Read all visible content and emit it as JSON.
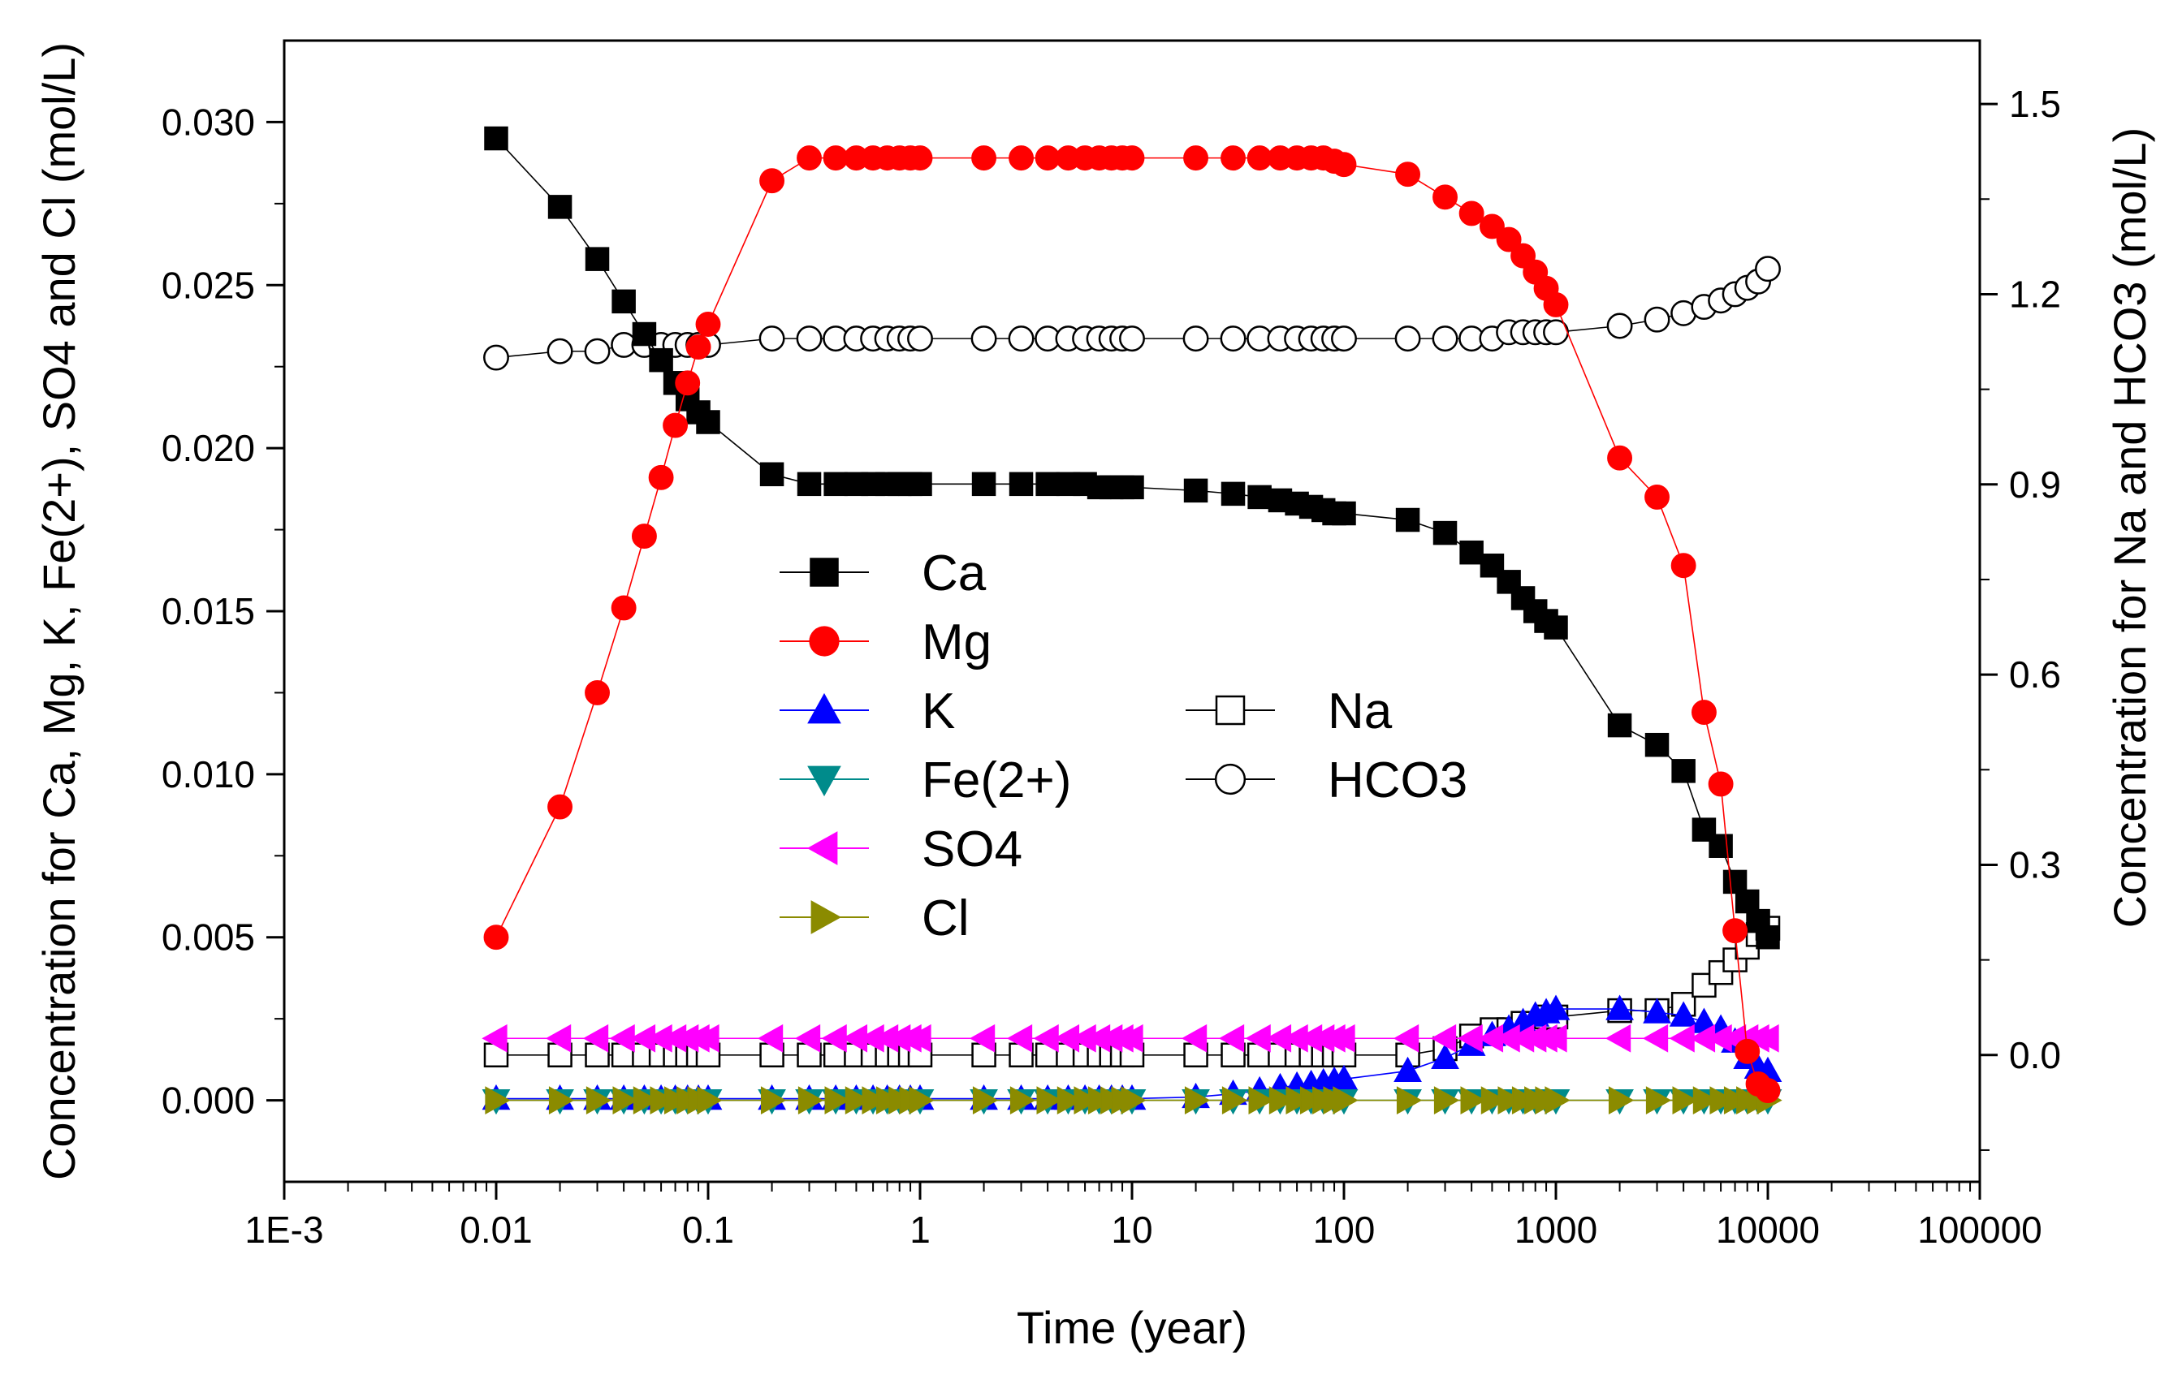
{
  "chart_data": {
    "type": "scatter",
    "title": "",
    "xlabel": "Time (year)",
    "ylabel_left": "Concentration for Ca, Mg, K, Fe(2+), SO4 and Cl (mol/L)",
    "ylabel_right": "Concentration for Na and HCO3 (mol/L)",
    "xscale": "log",
    "xlim": [
      0.001,
      100000
    ],
    "ylim_left": [
      -0.0025,
      0.0325
    ],
    "ylim_right": [
      -0.2,
      1.6
    ],
    "x_ticks": [
      0.001,
      0.01,
      0.1,
      1,
      10,
      100,
      1000,
      10000,
      100000
    ],
    "x_tick_labels": [
      "1E-3",
      "0.01",
      "0.1",
      "1",
      "10",
      "100",
      "1000",
      "10000",
      "100000"
    ],
    "y_left_ticks": [
      0,
      0.005,
      0.01,
      0.015,
      0.02,
      0.025,
      0.03
    ],
    "y_left_tick_labels": [
      "0.000",
      "0.005",
      "0.010",
      "0.015",
      "0.020",
      "0.025",
      "0.030"
    ],
    "y_right_ticks": [
      0,
      0.3,
      0.6,
      0.9,
      1.2,
      1.5
    ],
    "y_right_tick_labels": [
      "0.0",
      "0.3",
      "0.6",
      "0.9",
      "1.2",
      "1.5"
    ],
    "legend_position": "center",
    "x": [
      0.01,
      0.02,
      0.03,
      0.04,
      0.05,
      0.06,
      0.07,
      0.08,
      0.09,
      0.1,
      0.2,
      0.3,
      0.4,
      0.5,
      0.6,
      0.7,
      0.8,
      0.9,
      1,
      2,
      3,
      4,
      5,
      6,
      7,
      8,
      9,
      10,
      20,
      30,
      40,
      50,
      60,
      70,
      80,
      90,
      100,
      200,
      300,
      400,
      500,
      600,
      700,
      800,
      900,
      1000,
      2000,
      3000,
      4000,
      5000,
      6000,
      7000,
      8000,
      9000,
      10000
    ],
    "series": [
      {
        "name": "Ca",
        "axis": "left",
        "color": "#000000",
        "marker": "square-filled",
        "values": [
          0.0295,
          0.0274,
          0.0258,
          0.0245,
          0.0235,
          0.0227,
          0.022,
          0.0215,
          0.0211,
          0.0208,
          0.0192,
          0.0189,
          0.0189,
          0.0189,
          0.0189,
          0.0189,
          0.0189,
          0.0189,
          0.0189,
          0.0189,
          0.0189,
          0.0189,
          0.0189,
          0.0189,
          0.0188,
          0.0188,
          0.0188,
          0.0188,
          0.0187,
          0.0186,
          0.0185,
          0.0184,
          0.0183,
          0.0182,
          0.0181,
          0.018,
          0.018,
          0.0178,
          0.0174,
          0.0168,
          0.0164,
          0.0159,
          0.0154,
          0.015,
          0.0147,
          0.0145,
          0.0115,
          0.0109,
          0.0101,
          0.0083,
          0.0078,
          0.0067,
          0.0061,
          0.0055,
          0.005
        ]
      },
      {
        "name": "Mg",
        "axis": "left",
        "color": "#ff0000",
        "marker": "circle-filled",
        "values": [
          0.005,
          0.009,
          0.0125,
          0.0151,
          0.0173,
          0.0191,
          0.0207,
          0.022,
          0.0231,
          0.0238,
          0.0282,
          0.0289,
          0.0289,
          0.0289,
          0.0289,
          0.0289,
          0.0289,
          0.0289,
          0.0289,
          0.0289,
          0.0289,
          0.0289,
          0.0289,
          0.0289,
          0.0289,
          0.0289,
          0.0289,
          0.0289,
          0.0289,
          0.0289,
          0.0289,
          0.0289,
          0.0289,
          0.0289,
          0.0289,
          0.0288,
          0.0287,
          0.0284,
          0.0277,
          0.0272,
          0.0268,
          0.0264,
          0.0259,
          0.0254,
          0.0249,
          0.0244,
          0.0197,
          0.0185,
          0.0164,
          0.0119,
          0.0097,
          0.0052,
          0.0015,
          0.0005,
          0.0003
        ]
      },
      {
        "name": "K",
        "axis": "left",
        "color": "#0000ff",
        "marker": "triangle-up-filled",
        "values": [
          5e-05,
          5e-05,
          5e-05,
          5e-05,
          5e-05,
          5e-05,
          5e-05,
          5e-05,
          5e-05,
          5e-05,
          5e-05,
          5e-05,
          5e-05,
          5e-05,
          5e-05,
          5e-05,
          5e-05,
          5e-05,
          5e-05,
          5e-05,
          5e-05,
          5e-05,
          5e-05,
          5e-05,
          5e-05,
          5e-05,
          5e-05,
          5e-05,
          0.0001,
          0.0002,
          0.0003,
          0.0004,
          0.00045,
          0.0005,
          0.00055,
          0.0006,
          0.00065,
          0.0009,
          0.0013,
          0.0017,
          0.002,
          0.0022,
          0.0024,
          0.0026,
          0.0027,
          0.0028,
          0.0028,
          0.0027,
          0.0026,
          0.0024,
          0.0022,
          0.0018,
          0.0013,
          0.001,
          0.0009
        ]
      },
      {
        "name": "Fe(2+)",
        "axis": "left",
        "color": "#008b8b",
        "marker": "triangle-down-filled",
        "values": [
          0.0,
          0.0,
          0.0,
          0.0,
          0.0,
          0.0,
          0.0,
          0.0,
          0.0,
          0.0,
          0.0,
          0.0,
          0.0,
          0.0,
          0.0,
          0.0,
          0.0,
          0.0,
          0.0,
          0.0,
          0.0,
          0.0,
          0.0,
          0.0,
          0.0,
          0.0,
          0.0,
          0.0,
          0.0,
          0.0,
          0.0,
          0.0,
          0.0,
          0.0,
          0.0,
          0.0,
          0.0,
          0.0,
          0.0,
          0.0,
          0.0,
          0.0,
          0.0,
          0.0,
          0.0,
          0.0,
          0.0,
          0.0,
          0.0,
          0.0,
          0.0,
          0.0,
          0.0,
          0.0,
          0.0
        ]
      },
      {
        "name": "SO4",
        "axis": "left",
        "color": "#ff00ff",
        "marker": "triangle-left-filled",
        "values": [
          0.0019,
          0.0019,
          0.0019,
          0.0019,
          0.0019,
          0.0019,
          0.0019,
          0.0019,
          0.0019,
          0.0019,
          0.0019,
          0.0019,
          0.0019,
          0.0019,
          0.0019,
          0.0019,
          0.0019,
          0.0019,
          0.0019,
          0.0019,
          0.0019,
          0.0019,
          0.0019,
          0.0019,
          0.0019,
          0.0019,
          0.0019,
          0.0019,
          0.0019,
          0.0019,
          0.0019,
          0.0019,
          0.0019,
          0.0019,
          0.0019,
          0.0019,
          0.0019,
          0.0019,
          0.0019,
          0.0019,
          0.0019,
          0.0019,
          0.0019,
          0.0019,
          0.0019,
          0.0019,
          0.0019,
          0.0019,
          0.0019,
          0.0019,
          0.0019,
          0.0019,
          0.0019,
          0.0019,
          0.0019
        ]
      },
      {
        "name": "Cl",
        "axis": "left",
        "color": "#8b8b00",
        "marker": "triangle-right-filled",
        "values": [
          0.0,
          0.0,
          0.0,
          0.0,
          0.0,
          0.0,
          0.0,
          0.0,
          0.0,
          0.0,
          0.0,
          0.0,
          0.0,
          0.0,
          0.0,
          0.0,
          0.0,
          0.0,
          0.0,
          0.0,
          0.0,
          0.0,
          0.0,
          0.0,
          0.0,
          0.0,
          0.0,
          0.0,
          0.0,
          0.0,
          0.0,
          0.0,
          0.0,
          0.0,
          0.0,
          0.0,
          0.0,
          0.0,
          0.0,
          0.0,
          0.0,
          0.0,
          0.0,
          0.0,
          0.0,
          0.0,
          0.0,
          0.0,
          0.0,
          0.0,
          0.0,
          0.0,
          0.0,
          0.0,
          0.0
        ]
      },
      {
        "name": "Na",
        "axis": "right",
        "color": "#000000",
        "marker": "square-open",
        "values": [
          0.0,
          0.0,
          0.0,
          0.0,
          0.0,
          0.0,
          0.0,
          0.0,
          0.0,
          0.0,
          0.0,
          0.0,
          0.0,
          0.0,
          0.0,
          0.0,
          0.0,
          0.0,
          0.0,
          0.0,
          0.0,
          0.0,
          0.0,
          0.0,
          0.0,
          0.0,
          0.0,
          0.0,
          0.0,
          0.0,
          0.0,
          0.0,
          0.0,
          0.0,
          0.0,
          0.0,
          0.0,
          0.0,
          0.01,
          0.03,
          0.04,
          0.04,
          0.05,
          0.05,
          0.06,
          0.06,
          0.07,
          0.07,
          0.08,
          0.11,
          0.13,
          0.15,
          0.17,
          0.19,
          0.2
        ]
      },
      {
        "name": "HCO3",
        "axis": "right",
        "color": "#000000",
        "marker": "circle-open",
        "values": [
          1.1,
          1.11,
          1.11,
          1.12,
          1.12,
          1.12,
          1.12,
          1.12,
          1.12,
          1.12,
          1.13,
          1.13,
          1.13,
          1.13,
          1.13,
          1.13,
          1.13,
          1.13,
          1.13,
          1.13,
          1.13,
          1.13,
          1.13,
          1.13,
          1.13,
          1.13,
          1.13,
          1.13,
          1.13,
          1.13,
          1.13,
          1.13,
          1.13,
          1.13,
          1.13,
          1.13,
          1.13,
          1.13,
          1.13,
          1.13,
          1.13,
          1.14,
          1.14,
          1.14,
          1.14,
          1.14,
          1.15,
          1.16,
          1.17,
          1.18,
          1.19,
          1.2,
          1.21,
          1.22,
          1.24
        ]
      }
    ],
    "legend": [
      {
        "name": "Ca",
        "color": "#000000",
        "marker": "square-filled"
      },
      {
        "name": "Mg",
        "color": "#ff0000",
        "marker": "circle-filled"
      },
      {
        "name": "K",
        "color": "#0000ff",
        "marker": "triangle-up-filled"
      },
      {
        "name": "Fe(2+)",
        "color": "#008b8b",
        "marker": "triangle-down-filled"
      },
      {
        "name": "SO4",
        "color": "#ff00ff",
        "marker": "triangle-left-filled"
      },
      {
        "name": "Cl",
        "color": "#8b8b00",
        "marker": "triangle-right-filled"
      },
      {
        "name": "Na",
        "color": "#000000",
        "marker": "square-open"
      },
      {
        "name": "HCO3",
        "color": "#000000",
        "marker": "circle-open"
      }
    ]
  }
}
